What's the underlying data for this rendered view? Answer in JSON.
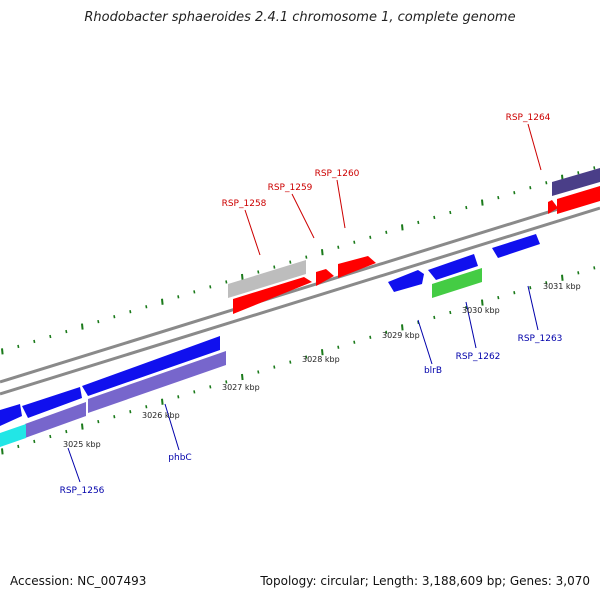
{
  "title": "Rhodobacter sphaeroides 2.4.1 chromosome 1, complete genome",
  "footer": {
    "accession": "Accession: NC_007493",
    "summary": "Topology: circular; Length: 3,188,609 bp; Genes: 3,070"
  },
  "colors": {
    "background": "#ffffff",
    "backbone": "#8a8a8a",
    "tick": "#1a7a1a",
    "forward_label": "#cc0000",
    "reverse_label": "#0000aa",
    "gene_red": "#ff0000",
    "gene_blue": "#1010ee",
    "gene_purple": "#7766cc",
    "gene_darkpurple": "#4a3e88",
    "gene_gray": "#bdbdbd",
    "gene_green": "#44cc44",
    "gene_cyan": "#22e6e6"
  },
  "scale_labels": [
    "3025 kbp",
    "3026 kbp",
    "3027 kbp",
    "3028 kbp",
    "3029 kbp",
    "3030 kbp",
    "3031 kbp"
  ],
  "gene_labels": {
    "forward": [
      "RSP_1258",
      "RSP_1259",
      "RSP_1260",
      "RSP_1264"
    ],
    "reverse": [
      "RSP_1256",
      "phbC",
      "blrB",
      "RSP_1262",
      "RSP_1263"
    ]
  }
}
